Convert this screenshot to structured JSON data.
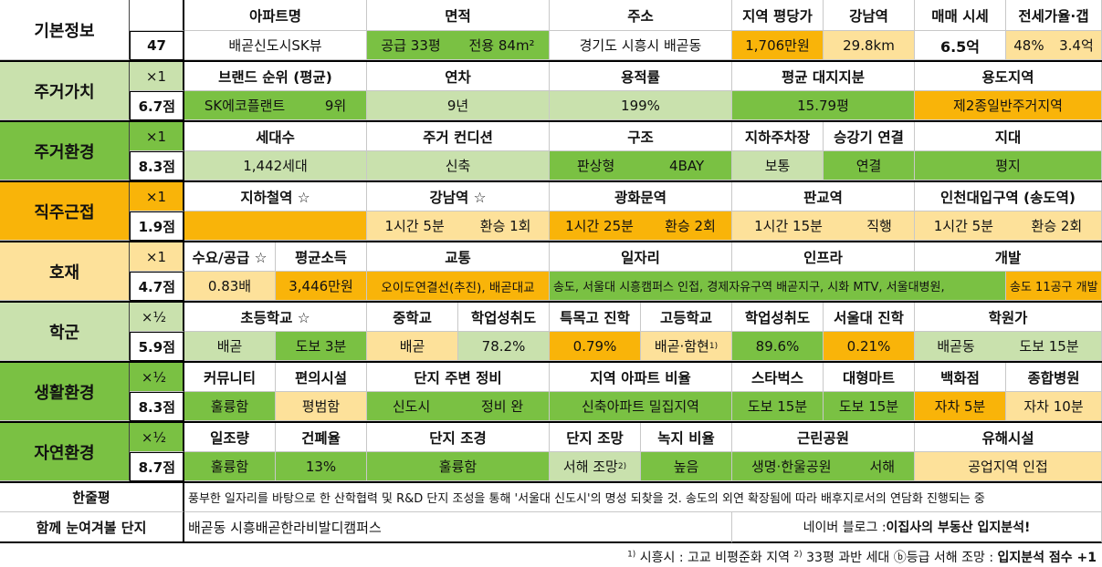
{
  "basic": {
    "label": "기본정보",
    "number": "47",
    "headers": [
      "아파트명",
      "면적",
      "주소",
      "지역 평당가",
      "강남역",
      "매매 시세",
      "전세가율·갭"
    ],
    "apt_name": "배곧신도시SK뷰",
    "area_supply": "공급 33평",
    "area_exclusive": "전용 84m²",
    "address": "경기도 시흥시 배곧동",
    "price_per_pyeong": "1,706만원",
    "gangnam_distance": "29.8km",
    "sale_price": "6.5억",
    "jeonse_rate": "48%",
    "gap": "3.4억"
  },
  "residential_value": {
    "label": "주거가치",
    "mult": "×1",
    "score": "6.7점",
    "headers": [
      "브랜드 순위 (평균)",
      "연차",
      "용적률",
      "평균 대지지분",
      "용도지역"
    ],
    "brand": "SK에코플랜트",
    "brand_rank": "9위",
    "age": "9년",
    "far": "199%",
    "land_share": "15.79평",
    "zoning": "제2종일반주거지역"
  },
  "residential_env": {
    "label": "주거환경",
    "mult": "×1",
    "score": "8.3점",
    "headers": [
      "세대수",
      "주거 컨디션",
      "구조",
      "지하주차장",
      "승강기 연결",
      "지대"
    ],
    "households": "1,442세대",
    "condition": "신축",
    "structure_type": "판상형",
    "bay": "4BAY",
    "parking": "보통",
    "elevator": "연결",
    "terrain": "평지"
  },
  "commute": {
    "label": "직주근접",
    "mult": "×1",
    "score": "1.9점",
    "headers": [
      "지하철역 ☆",
      "강남역 ☆",
      "광화문역",
      "판교역",
      "인천대입구역 (송도역)"
    ],
    "gangnam_time": "1시간 5분",
    "gangnam_transfer": "환승 1회",
    "gwanghwamun_time": "1시간 25분",
    "gwanghwamun_transfer": "환승 2회",
    "pangyo_time": "1시간 15분",
    "pangyo_transfer": "직행",
    "incheon_time": "1시간 5분",
    "incheon_transfer": "환승 2회"
  },
  "development": {
    "label": "호재",
    "mult": "×1",
    "score": "4.7점",
    "headers": [
      "수요/공급 ☆",
      "평균소득",
      "교통",
      "일자리",
      "인프라",
      "개발"
    ],
    "supply_demand": "0.83배",
    "income": "3,446만원",
    "transport": "오이도연결선(추진), 배곧대교",
    "jobs_infra": "송도, 서울대 시흥캠퍼스 인접, 경제자유구역 배곧지구, 시화 MTV, 서울대병원,",
    "development": "송도 11공구 개발"
  },
  "school": {
    "label": "학군",
    "mult": "×½",
    "score": "5.9점",
    "headers": [
      "초등학교 ☆",
      "중학교",
      "학업성취도",
      "특목고 진학",
      "고등학교",
      "학업성취도",
      "서울대 진학",
      "학원가"
    ],
    "elementary": "배곧",
    "elementary_walk": "도보 3분",
    "middle": "배곧",
    "middle_achievement": "78.2%",
    "special_high": "0.79%",
    "high": "배곧·함현",
    "high_note": "1)",
    "high_achievement": "89.6%",
    "snu_rate": "0.21%",
    "academy": "배곧동",
    "academy_walk": "도보 15분"
  },
  "living_env": {
    "label": "생활환경",
    "mult": "×½",
    "score": "8.3점",
    "headers": [
      "커뮤니티",
      "편의시설",
      "단지 주변 정비",
      "지역 아파트 비율",
      "스타벅스",
      "대형마트",
      "백화점",
      "종합병원"
    ],
    "community": "훌륭함",
    "amenities": "평범함",
    "surroundings": "신도시",
    "maintenance": "정비 완",
    "apt_ratio": "신축아파트 밀집지역",
    "starbucks": "도보 15분",
    "mart": "도보 15분",
    "dept_store": "자차 5분",
    "hospital": "자차 10분"
  },
  "nature_env": {
    "label": "자연환경",
    "mult": "×½",
    "score": "8.7점",
    "headers": [
      "일조량",
      "건폐율",
      "단지 조경",
      "단지 조망",
      "녹지 비율",
      "근린공원",
      "유해시설"
    ],
    "sunlight": "훌륭함",
    "bcr": "13%",
    "landscape": "훌륭함",
    "view": "서해 조망",
    "view_note": "2)",
    "green_ratio": "높음",
    "park": "생명·한울공원",
    "park_dir": "서해",
    "hazard": "공업지역 인접"
  },
  "summary": {
    "label": "한줄평",
    "text": "풍부한 일자리를 바탕으로 한 산학협력 및 R&D 단지 조성을 통해 '서울대 신도시'의 명성 되찾을 것. 송도의 외연 확장됨에 따라 배후지로서의 연담화 진행되는 중"
  },
  "related": {
    "label": "함께 눈여겨볼 단지",
    "text": "배곧동 시흥배곧한라비발디캠퍼스",
    "blog_prefix": "네이버 블로그 : ",
    "blog_name": "이집사의 부동산 입지분석!"
  },
  "footnote": {
    "note1_mark": "1)",
    "note1": " 시흥시 : 고교 비평준화 지역 ",
    "note2_mark": "2)",
    "note2": " 33평 과반 세대 ⓑ등급 서해 조망 : ",
    "bonus": "입지분석 점수 +1"
  },
  "colors": {
    "green": "#7ac143",
    "light_green": "#c9e1ad",
    "orange": "#f9b409",
    "light_yellow": "#fde19a"
  }
}
